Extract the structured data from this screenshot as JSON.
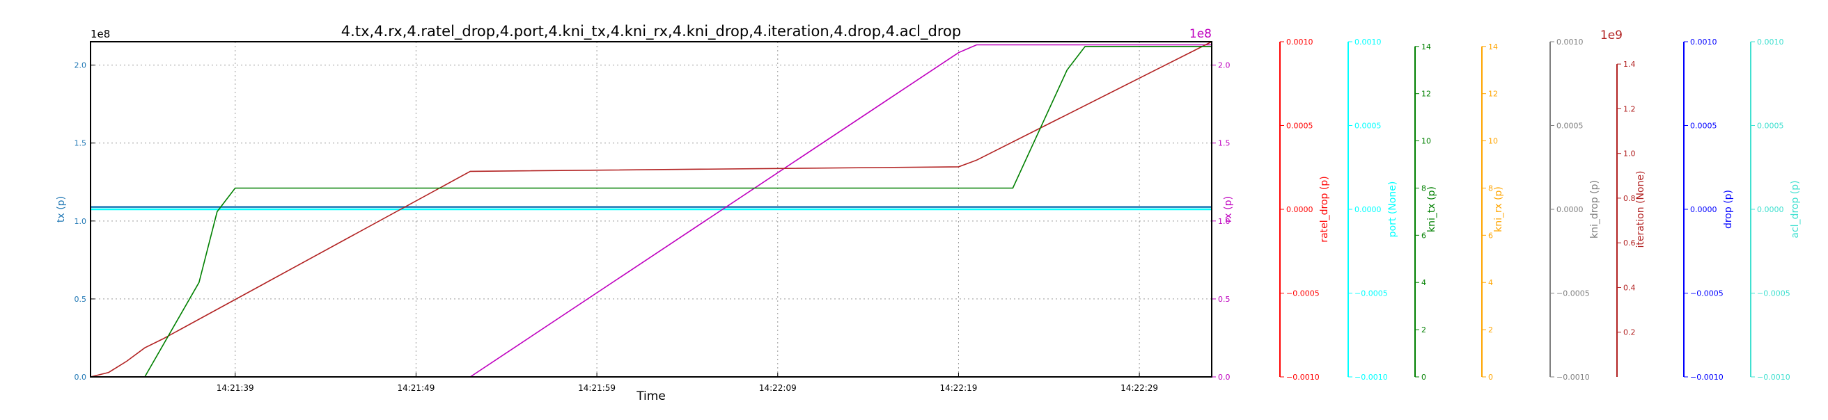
{
  "chart_data": {
    "type": "line",
    "title": "4.tx,4.rx,4.ratel_drop,4.port,4.kni_tx,4.kni_rx,4.kni_drop,4.iteration,4.drop,4.acl_drop",
    "xlabel": "Time",
    "x_ticks": [
      "14:21:39",
      "14:21:49",
      "14:21:59",
      "14:22:09",
      "14:22:19",
      "14:22:29"
    ],
    "grid": true,
    "axes": [
      {
        "key": "tx",
        "label": "tx (p)",
        "color": "#1f77b4",
        "side": "left",
        "scale_text": "1e8",
        "ylim": [
          0,
          2.15
        ],
        "ticks": [
          "0.0",
          "0.5",
          "1.0",
          "1.5",
          "2.0"
        ],
        "tick_values": [
          0,
          0.5,
          1.0,
          1.5,
          2.0
        ]
      },
      {
        "key": "rx",
        "label": "rx (p)",
        "color": "#bf00bf",
        "side": "right",
        "scale_text": "1e8",
        "ylim": [
          0,
          2.15
        ],
        "ticks": [
          "0.0",
          "0.5",
          "1.0",
          "1.5",
          "2.0"
        ],
        "tick_values": [
          0,
          0.5,
          1.0,
          1.5,
          2.0
        ]
      },
      {
        "key": "ratel_drop",
        "label": "ratel_drop (p)",
        "color": "#ff0000",
        "side": "right",
        "scale_text": "",
        "ylim": [
          -0.001,
          0.001
        ],
        "ticks": [
          "−0.0010",
          "−0.0005",
          "0.0000",
          "0.0005",
          "0.0010"
        ],
        "tick_values": [
          -0.001,
          -0.0005,
          0,
          0.0005,
          0.001
        ]
      },
      {
        "key": "port",
        "label": "port (None)",
        "color": "#00ffff",
        "side": "right",
        "scale_text": "",
        "ylim": [
          -0.001,
          0.001
        ],
        "ticks": [
          "−0.0010",
          "−0.0005",
          "0.0000",
          "0.0005",
          "0.0010"
        ],
        "tick_values": [
          -0.001,
          -0.0005,
          0,
          0.0005,
          0.001
        ]
      },
      {
        "key": "kni_tx",
        "label": "kni_tx (p)",
        "color": "#008000",
        "side": "right",
        "scale_text": "",
        "ylim": [
          0,
          14.2
        ],
        "ticks": [
          "0",
          "2",
          "4",
          "6",
          "8",
          "10",
          "12",
          "14"
        ],
        "tick_values": [
          0,
          2,
          4,
          6,
          8,
          10,
          12,
          14
        ]
      },
      {
        "key": "kni_rx",
        "label": "kni_rx (p)",
        "color": "#ffa500",
        "side": "right",
        "scale_text": "",
        "ylim": [
          0,
          14.2
        ],
        "ticks": [
          "0",
          "2",
          "4",
          "6",
          "8",
          "10",
          "12",
          "14"
        ],
        "tick_values": [
          0,
          2,
          4,
          6,
          8,
          10,
          12,
          14
        ]
      },
      {
        "key": "kni_drop",
        "label": "kni_drop (p)",
        "color": "#808080",
        "side": "right",
        "scale_text": "",
        "ylim": [
          -0.001,
          0.001
        ],
        "ticks": [
          "−0.0010",
          "−0.0005",
          "0.0000",
          "0.0005",
          "0.0010"
        ],
        "tick_values": [
          -0.001,
          -0.0005,
          0,
          0.0005,
          0.001
        ]
      },
      {
        "key": "iteration",
        "label": "iteration (None)",
        "color": "#b22222",
        "side": "right",
        "scale_text": "1e9",
        "ylim": [
          0,
          1.5
        ],
        "ticks": [
          "0.2",
          "0.4",
          "0.6",
          "0.8",
          "1.0",
          "1.2",
          "1.4"
        ],
        "tick_values": [
          0.2,
          0.4,
          0.6,
          0.8,
          1.0,
          1.2,
          1.4
        ]
      },
      {
        "key": "drop",
        "label": "drop (p)",
        "color": "#0000ff",
        "side": "right",
        "scale_text": "",
        "ylim": [
          -0.001,
          0.001
        ],
        "ticks": [
          "−0.0010",
          "−0.0005",
          "0.0000",
          "0.0005",
          "0.0010"
        ],
        "tick_values": [
          -0.001,
          -0.0005,
          0,
          0.0005,
          0.001
        ]
      },
      {
        "key": "acl_drop",
        "label": "acl_drop (p)",
        "color": "#40e0d0",
        "side": "right",
        "scale_text": "",
        "ylim": [
          -0.001,
          0.001
        ],
        "ticks": [
          "−0.0010",
          "−0.0005",
          "0.0000",
          "0.0005",
          "0.0010"
        ],
        "tick_values": [
          -0.001,
          -0.0005,
          0,
          0.0005,
          0.001
        ]
      }
    ],
    "x_range": [
      "14:21:31",
      "14:22:33"
    ],
    "series": [
      {
        "axis": "tx",
        "x": [
          "14:21:31",
          "14:22:33"
        ],
        "y": [
          1.09,
          1.09
        ]
      },
      {
        "axis": "port",
        "x": [
          "14:21:31",
          "14:22:33"
        ],
        "y": [
          0,
          0
        ]
      },
      {
        "axis": "rx",
        "x": [
          "14:21:31",
          "14:21:52",
          "14:22:19",
          "14:22:20",
          "14:22:33"
        ],
        "y": [
          0,
          0,
          2.08,
          2.13,
          2.13
        ]
      },
      {
        "axis": "iteration",
        "x": [
          "14:21:31",
          "14:21:32",
          "14:21:33",
          "14:21:34",
          "14:21:35",
          "14:21:52",
          "14:22:19",
          "14:22:20",
          "14:22:33"
        ],
        "y": [
          0,
          0.02,
          0.07,
          0.13,
          0.17,
          0.92,
          0.94,
          0.97,
          1.5
        ]
      },
      {
        "axis": "kni_tx",
        "x": [
          "14:21:31",
          "14:21:34",
          "14:21:37",
          "14:21:38",
          "14:21:39",
          "14:22:22",
          "14:22:25",
          "14:22:26",
          "14:22:33"
        ],
        "y": [
          0,
          0,
          4.0,
          7.0,
          8.0,
          8.0,
          13.0,
          14.0,
          14.0
        ]
      }
    ]
  }
}
